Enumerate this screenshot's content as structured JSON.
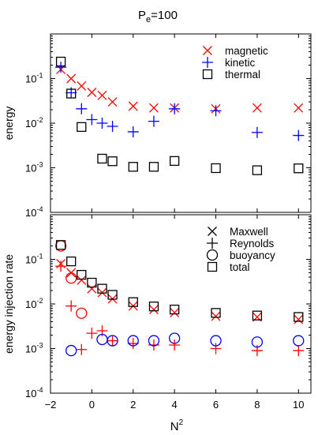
{
  "chart_data": [
    {
      "type": "scatter",
      "title": "P_e=100",
      "title_main": "P",
      "title_sub": "e",
      "title_tail": "=100",
      "xlabel": "",
      "ylabel": "energy",
      "xlim": [
        -2,
        10.6
      ],
      "ylim": [
        0.0001,
        1
      ],
      "yscale": "log",
      "ytick_labels": [
        "10-1",
        "10-2",
        "10-3",
        "10-4"
      ],
      "legend_placement": "top-right",
      "series": [
        {
          "name": "magnetic",
          "marker": "x",
          "color": "#ff0000",
          "x": [
            -1.5,
            -1,
            -0.5,
            0,
            0.5,
            1,
            2,
            3,
            4,
            6,
            8,
            10
          ],
          "y": [
            0.16,
            0.1,
            0.068,
            0.049,
            0.042,
            0.03,
            0.024,
            0.022,
            0.022,
            0.021,
            0.022,
            0.022
          ]
        },
        {
          "name": "kinetic",
          "marker": "plus",
          "color": "#0000ff",
          "x": [
            -1.5,
            -1,
            -0.5,
            0,
            0.5,
            1,
            2,
            3,
            4,
            6,
            8,
            10
          ],
          "y": [
            0.18,
            0.048,
            0.021,
            0.012,
            0.01,
            0.0085,
            0.0064,
            0.011,
            0.021,
            0.019,
            0.0062,
            0.0053
          ]
        },
        {
          "name": "thermal",
          "marker": "square",
          "color": "#000000",
          "x": [
            -1.5,
            -1,
            -0.5,
            0.5,
            1,
            2,
            3,
            4,
            6,
            8,
            10
          ],
          "y": [
            0.24,
            0.046,
            0.0082,
            0.0016,
            0.0014,
            0.00105,
            0.00105,
            0.00142,
            0.00098,
            0.00088,
            0.00097
          ]
        }
      ]
    },
    {
      "type": "scatter",
      "xlabel": "N2",
      "xlabel_main": "N",
      "xlabel_sup": "2",
      "ylabel": "energy injection rate",
      "xlim": [
        -2,
        10.6
      ],
      "ylim": [
        0.0001,
        1
      ],
      "yscale": "log",
      "xtick_labels": [
        "−2",
        "0",
        "2",
        "4",
        "6",
        "8",
        "10"
      ],
      "ytick_labels": [
        "10-1",
        "10-2",
        "10-3",
        "10-4"
      ],
      "legend_placement": "top-right",
      "series": [
        {
          "name": "Maxwell",
          "marker": "x",
          "color": "#ff0000",
          "x": [
            -1.5,
            -1,
            -0.5,
            0,
            0.5,
            1,
            2,
            3,
            4,
            6,
            8,
            10
          ],
          "y": [
            0.08,
            0.05,
            0.034,
            0.022,
            0.018,
            0.013,
            0.009,
            0.0075,
            0.0064,
            0.0053,
            0.0051,
            0.0045
          ]
        },
        {
          "name": "Reynolds",
          "marker": "plus",
          "color": "#ff0000",
          "x": [
            -1.5,
            -1,
            -0.5,
            0,
            0.5,
            1,
            2,
            3,
            4,
            6,
            8,
            10
          ],
          "y": [
            0.07,
            0.009,
            0.00095,
            0.0022,
            0.0025,
            0.0015,
            0.0013,
            0.0012,
            0.0012,
            0.001,
            0.0009,
            0.0009
          ]
        },
        {
          "name": "buoyancy",
          "marker": "circle",
          "color": "#ff0000",
          "x": [
            -1.5,
            -1,
            -0.5
          ],
          "y": [
            0.2,
            0.038,
            0.0062
          ]
        },
        {
          "name": "buoyancy-blue",
          "marker": "circle",
          "color": "#0000ff",
          "x": [
            -1,
            0.5,
            1,
            2,
            3,
            4,
            6,
            8,
            10
          ],
          "y": [
            0.0009,
            0.0016,
            0.0015,
            0.0015,
            0.0015,
            0.0017,
            0.0015,
            0.0014,
            0.0015
          ]
        },
        {
          "name": "total",
          "marker": "square",
          "color": "#000000",
          "x": [
            -1.5,
            -1,
            -0.5,
            0,
            0.5,
            1,
            2,
            3,
            4,
            6,
            8,
            10
          ],
          "y": [
            0.21,
            0.09,
            0.045,
            0.03,
            0.022,
            0.016,
            0.011,
            0.0088,
            0.0075,
            0.0063,
            0.0055,
            0.0051
          ]
        }
      ],
      "legend": [
        {
          "label": "Maxwell",
          "marker": "x"
        },
        {
          "label": "Reynolds",
          "marker": "plus"
        },
        {
          "label": "buoyancy",
          "marker": "circle"
        },
        {
          "label": "total",
          "marker": "square"
        }
      ]
    }
  ]
}
